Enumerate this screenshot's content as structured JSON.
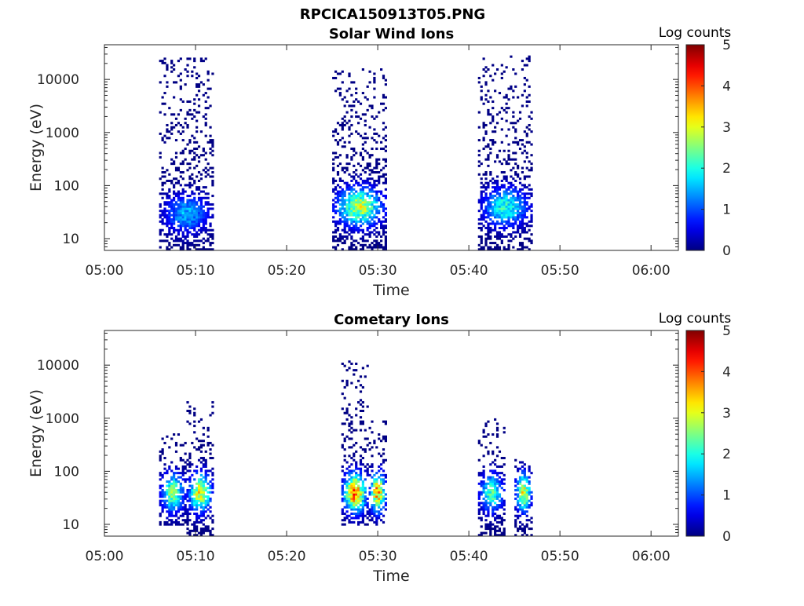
{
  "figure_title": "RPCICA150913T05.PNG",
  "chart_data": [
    {
      "type": "heatmap",
      "title": "Solar Wind Ions",
      "xlabel": "Time",
      "ylabel": "Energy (eV)",
      "x_ticks": [
        "05:00",
        "05:10",
        "05:20",
        "05:30",
        "05:40",
        "05:50",
        "06:00"
      ],
      "xlim": [
        "05:00",
        "06:03"
      ],
      "y_scale": "log",
      "y_ticks": [
        10,
        100,
        1000,
        10000
      ],
      "y_tick_labels": [
        "10",
        "100",
        "1000",
        "10000"
      ],
      "ylim": [
        6,
        45000
      ],
      "colorbar": {
        "label": "Log counts",
        "range": [
          0,
          5
        ],
        "ticks": [
          "0",
          "1",
          "2",
          "3",
          "4",
          "5"
        ],
        "colormap": "jet"
      },
      "grid": false,
      "bursts": [
        {
          "t_start": "05:06",
          "t_end": "05:12",
          "e_low": 6,
          "e_high": 25000,
          "peak_energy": 30,
          "peak_log_counts": 1.5
        },
        {
          "t_start": "05:25",
          "t_end": "05:31",
          "e_low": 6,
          "e_high": 16000,
          "peak_energy": 40,
          "peak_log_counts": 2.8
        },
        {
          "t_start": "05:41",
          "t_end": "05:47",
          "e_low": 6,
          "e_high": 30000,
          "peak_energy": 40,
          "peak_log_counts": 2.0
        }
      ]
    },
    {
      "type": "heatmap",
      "title": "Cometary Ions",
      "xlabel": "Time",
      "ylabel": "Energy (eV)",
      "x_ticks": [
        "05:00",
        "05:10",
        "05:20",
        "05:30",
        "05:40",
        "05:50",
        "06:00"
      ],
      "xlim": [
        "05:00",
        "06:03"
      ],
      "y_scale": "log",
      "y_ticks": [
        10,
        100,
        1000,
        10000
      ],
      "y_tick_labels": [
        "10",
        "100",
        "1000",
        "10000"
      ],
      "ylim": [
        6,
        45000
      ],
      "colorbar": {
        "label": "Log counts",
        "range": [
          0,
          5
        ],
        "ticks": [
          "0",
          "1",
          "2",
          "3",
          "4",
          "5"
        ],
        "colormap": "jet"
      },
      "grid": false,
      "bursts": [
        {
          "t_start": "05:06",
          "t_end": "05:09",
          "e_low": 10,
          "e_high": 500,
          "peak_energy": 40,
          "peak_log_counts": 2.5
        },
        {
          "t_start": "05:09",
          "t_end": "05:12",
          "e_low": 6,
          "e_high": 2000,
          "peak_energy": 40,
          "peak_log_counts": 3.0
        },
        {
          "t_start": "05:26",
          "t_end": "05:29",
          "e_low": 10,
          "e_high": 12000,
          "peak_energy": 40,
          "peak_log_counts": 3.8
        },
        {
          "t_start": "05:29",
          "t_end": "05:31",
          "e_low": 10,
          "e_high": 900,
          "peak_energy": 40,
          "peak_log_counts": 3.6
        },
        {
          "t_start": "05:41",
          "t_end": "05:44",
          "e_low": 6,
          "e_high": 1000,
          "peak_energy": 40,
          "peak_log_counts": 2.3
        },
        {
          "t_start": "05:45",
          "t_end": "05:47",
          "e_low": 6,
          "e_high": 170,
          "peak_energy": 40,
          "peak_log_counts": 3.0
        }
      ]
    }
  ]
}
